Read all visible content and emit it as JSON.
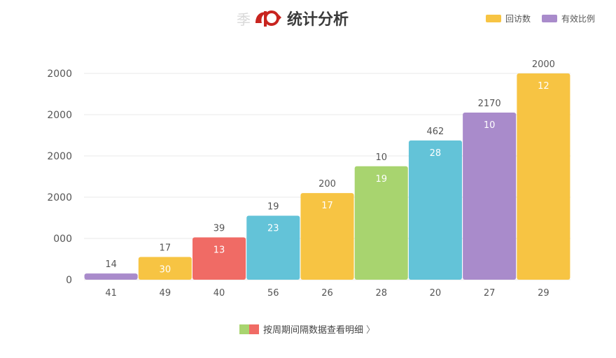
{
  "header": {
    "ghost_glyph": "季",
    "title": "统计分析"
  },
  "legend": [
    {
      "label": "回访数",
      "color": "#f7c443"
    },
    {
      "label": "有效比例",
      "color": "#a98bcb"
    }
  ],
  "footer": {
    "label": "按周期间隔数据查看明细",
    "chevron": "〉",
    "swatch_colors": [
      "#a8d46f",
      "#f06b65"
    ]
  },
  "chart_data": {
    "type": "bar",
    "title": "统计分析",
    "y_tick_labels": [
      "0",
      "000",
      "2000",
      "2000",
      "2000",
      "2000"
    ],
    "ylim": [
      0,
      2000
    ],
    "grid": true,
    "legend_position": "top-right",
    "categories": [
      "41",
      "49",
      "40",
      "56",
      "26",
      "28",
      "20",
      "27",
      "29"
    ],
    "values": [
      60,
      220,
      410,
      620,
      840,
      1100,
      1350,
      1620,
      2000
    ],
    "inner_labels": [
      "",
      "30",
      "13",
      "23",
      "17",
      "19",
      "28",
      "10",
      "12"
    ],
    "top_labels": [
      "14",
      "17",
      "39",
      "19",
      "200",
      "10",
      "462",
      "2170",
      "2000"
    ],
    "colors": [
      "#a98bcb",
      "#f7c443",
      "#f06b65",
      "#63c3d8",
      "#f7c443",
      "#a8d46f",
      "#63c3d8",
      "#a98bcb",
      "#f7c443"
    ]
  }
}
